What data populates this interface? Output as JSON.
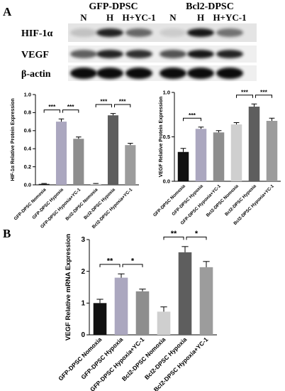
{
  "panel_labels": [
    "A",
    "B"
  ],
  "blot": {
    "groups": [
      "GFP-DPSC",
      "Bcl2-DPSC"
    ],
    "lanes": [
      "N",
      "H",
      "H+YC-1",
      "N",
      "H",
      "H+YC-1"
    ],
    "rows": [
      "HIF-1α",
      "VEGF",
      "β-actin"
    ]
  },
  "chart_data": [
    {
      "type": "bar",
      "ylabel": "HIF-1α Relative Protein Expression",
      "categories": [
        "GFP-DPSC Nomoxia",
        "GFP-DPSC Hypoxia",
        "GFP-DPSC Hypoxia+YC-1",
        "Bcl2-DPSC Nomoxia",
        "Bcl2-DPSC Hypoxia",
        "Bcl2-DPSC Hypoxia+YC-1"
      ],
      "values": [
        0.01,
        0.7,
        0.51,
        0.01,
        0.77,
        0.44
      ],
      "errors": [
        0.005,
        0.03,
        0.02,
        0.005,
        0.02,
        0.02
      ],
      "colors": [
        "#111111",
        "#aba7bf",
        "#8e8e8e",
        "#cfcfcf",
        "#5e5e5e",
        "#9c9c9c"
      ],
      "ylim": [
        0,
        1
      ],
      "yticks": [
        {
          "value": 0,
          "label": "0.0"
        },
        0.2,
        0.4,
        0.6,
        0.8,
        {
          "value": 1,
          "label": "1.0"
        }
      ],
      "comparisons": [
        {
          "pair": [
            0,
            1
          ],
          "label": "***"
        },
        {
          "pair": [
            1,
            2
          ],
          "label": "***"
        },
        {
          "pair": [
            3,
            4
          ],
          "label": "***"
        },
        {
          "pair": [
            4,
            5
          ],
          "label": "***"
        }
      ]
    },
    {
      "type": "bar",
      "ylabel": "VEGF Relative Protein Expression",
      "categories": [
        "GFP-DPSC Nomoxia",
        "GFP-DPSC Hypoxia",
        "GFP-DPSC Hypoxia+YC-1",
        "Bcl2-DPSC Nomoxia",
        "Bcl2-DPSC Hypoxia",
        "Bcl2-DPSC Hypoxia+YC-1"
      ],
      "values": [
        0.33,
        0.59,
        0.55,
        0.64,
        0.84,
        0.68
      ],
      "errors": [
        0.04,
        0.02,
        0.02,
        0.02,
        0.03,
        0.03
      ],
      "colors": [
        "#111111",
        "#aba7bf",
        "#8e8e8e",
        "#cfcfcf",
        "#5e5e5e",
        "#9c9c9c"
      ],
      "ylim": [
        0,
        1
      ],
      "yticks": [
        {
          "value": 0,
          "label": "0.0"
        },
        0.5,
        {
          "value": 1,
          "label": "1.0"
        }
      ],
      "comparisons": [
        {
          "pair": [
            0,
            1
          ],
          "label": "***"
        },
        {
          "pair": [
            3,
            4
          ],
          "label": "***"
        },
        {
          "pair": [
            4,
            5
          ],
          "label": "***"
        }
      ]
    },
    {
      "type": "bar",
      "ylabel": "VEGF Relative mRNA Expression",
      "categories": [
        "GFP-DPSC Nomoxia",
        "GFP-DPSC Hypoxia",
        "GFP-DPSC Hypoxia+YC-1",
        "Bcl2-DPSC Nomoxia",
        "Bcl2-DPSC Hypoxia",
        "Bcl2-DPSC Hypoxia+YC-1"
      ],
      "values": [
        1.0,
        1.8,
        1.37,
        0.73,
        2.6,
        2.13
      ],
      "errors": [
        0.12,
        0.12,
        0.07,
        0.15,
        0.18,
        0.18
      ],
      "colors": [
        "#111111",
        "#aba7bf",
        "#8e8e8e",
        "#cfcfcf",
        "#5e5e5e",
        "#9c9c9c"
      ],
      "ylim": [
        0,
        3
      ],
      "yticks": [
        0,
        1,
        2,
        3
      ],
      "comparisons": [
        {
          "pair": [
            0,
            1
          ],
          "label": "**"
        },
        {
          "pair": [
            1,
            2
          ],
          "label": "*"
        },
        {
          "pair": [
            3,
            4
          ],
          "label": "**"
        },
        {
          "pair": [
            4,
            5
          ],
          "label": "*"
        }
      ]
    }
  ]
}
